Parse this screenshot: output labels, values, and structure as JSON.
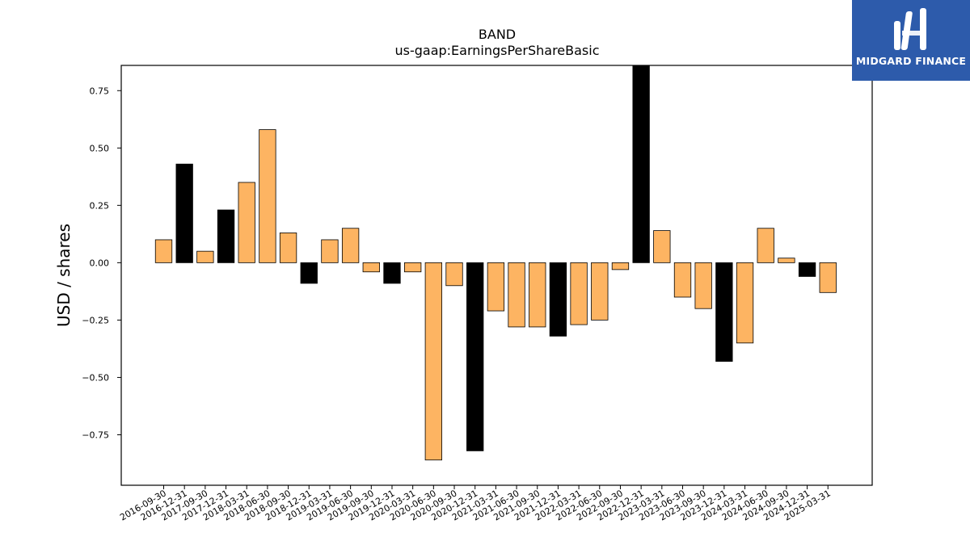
{
  "brand": {
    "name": "MIDGARD FINANCE",
    "bg_color": "#2d5bab"
  },
  "chart_data": {
    "type": "bar",
    "title": "BAND",
    "subtitle": "us-gaap:EarningsPerShareBasic",
    "xlabel": "",
    "ylabel": "USD / shares",
    "ylim": [
      -0.97,
      0.86
    ],
    "yticks": [
      -0.75,
      -0.5,
      -0.25,
      0.0,
      0.25,
      0.5,
      0.75
    ],
    "ytick_labels": [
      "−0.75",
      "−0.50",
      "−0.25",
      "0.00",
      "0.25",
      "0.50",
      "0.75"
    ],
    "colors": {
      "quarter": "#fdb462",
      "annual": "#000000"
    },
    "categories": [
      "2016-09-30",
      "2016-12-31",
      "2017-09-30",
      "2017-12-31",
      "2018-03-31",
      "2018-06-30",
      "2018-09-30",
      "2018-12-31",
      "2019-03-31",
      "2019-06-30",
      "2019-09-30",
      "2019-12-31",
      "2020-03-31",
      "2020-06-30",
      "2020-09-30",
      "2020-12-31",
      "2021-03-31",
      "2021-06-30",
      "2021-09-30",
      "2021-12-31",
      "2022-03-31",
      "2022-06-30",
      "2022-09-30",
      "2022-12-31",
      "2023-03-31",
      "2023-06-30",
      "2023-09-30",
      "2023-12-31",
      "2024-03-31",
      "2024-06-30",
      "2024-09-30",
      "2024-12-31",
      "2025-03-31"
    ],
    "values": [
      0.1,
      0.43,
      0.05,
      0.23,
      0.35,
      0.58,
      0.13,
      -0.09,
      0.1,
      0.15,
      -0.04,
      -0.09,
      -0.04,
      -0.86,
      -0.1,
      -0.82,
      -0.21,
      -0.28,
      -0.28,
      -0.32,
      -0.27,
      -0.25,
      -0.03,
      0.86,
      0.14,
      -0.15,
      -0.2,
      -0.43,
      -0.35,
      0.15,
      0.02,
      -0.06,
      -0.13
    ],
    "kinds": [
      "q",
      "a",
      "q",
      "a",
      "q",
      "q",
      "q",
      "a",
      "q",
      "q",
      "q",
      "a",
      "q",
      "q",
      "q",
      "a",
      "q",
      "q",
      "q",
      "a",
      "q",
      "q",
      "q",
      "a",
      "q",
      "q",
      "q",
      "a",
      "q",
      "q",
      "q",
      "a",
      "q"
    ],
    "grid": false,
    "legend": "none"
  }
}
